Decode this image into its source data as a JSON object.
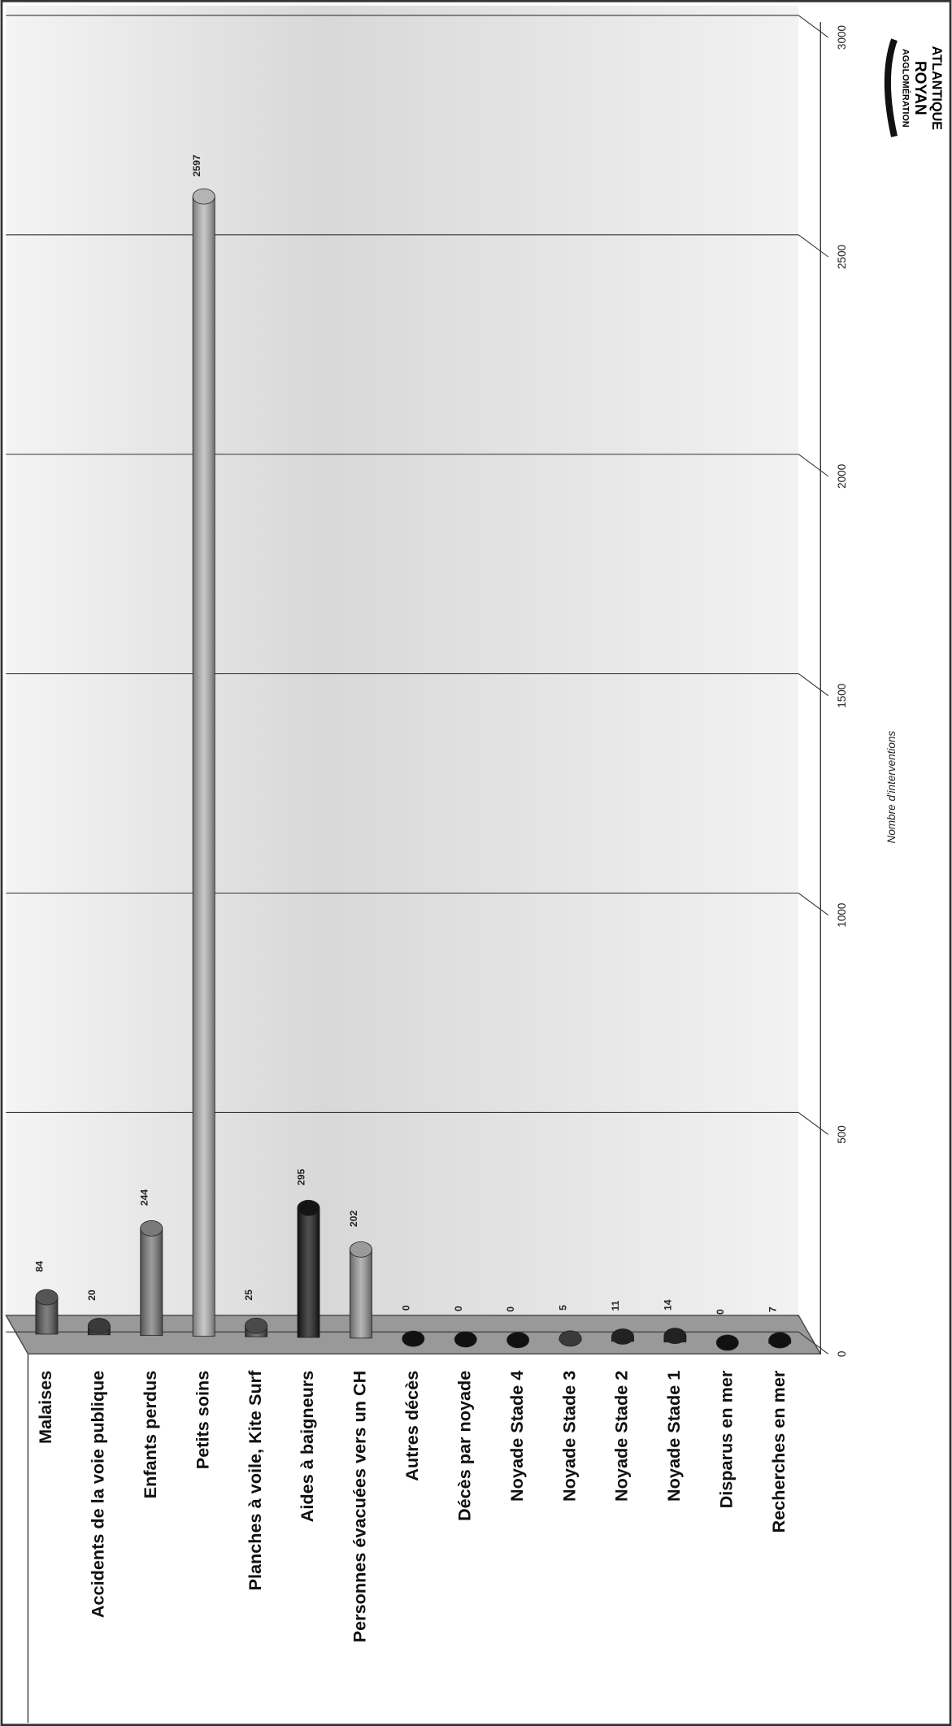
{
  "chart_data": {
    "type": "bar",
    "categories": [
      "Malaises",
      "Accidents de la voie publique",
      "Enfants perdus",
      "Petits soins",
      "Planches à voile, Kite Surf",
      "Aides à baigneurs",
      "Personnes évacuées vers un CH",
      "Autres décès",
      "Décès par noyade",
      "Noyade Stade 4",
      "Noyade Stade 3",
      "Noyade Stade 2",
      "Noyade Stade 1",
      "Disparus en mer",
      "Recherches en mer"
    ],
    "values": [
      84,
      20,
      244,
      2597,
      25,
      295,
      202,
      0,
      0,
      0,
      5,
      11,
      14,
      0,
      7
    ],
    "colors": [
      "#555555",
      "#3a3a3a",
      "#7a7a7a",
      "#b4b4b4",
      "#4a4a4a",
      "#141414",
      "#9a9a9a",
      "#111111",
      "#111111",
      "#111111",
      "#3a3a3a",
      "#222222",
      "#222222",
      "#111111",
      "#111111"
    ],
    "ylabel": "Nombre d'interventions",
    "ylim": [
      0,
      3000
    ],
    "yticks": [
      0,
      500,
      1000,
      1500,
      2000,
      2500,
      3000
    ],
    "grid": true
  },
  "logo": {
    "lines": [
      "AGGLOMÉRATION",
      "ROYAN",
      "ATLANTIQUE"
    ]
  }
}
